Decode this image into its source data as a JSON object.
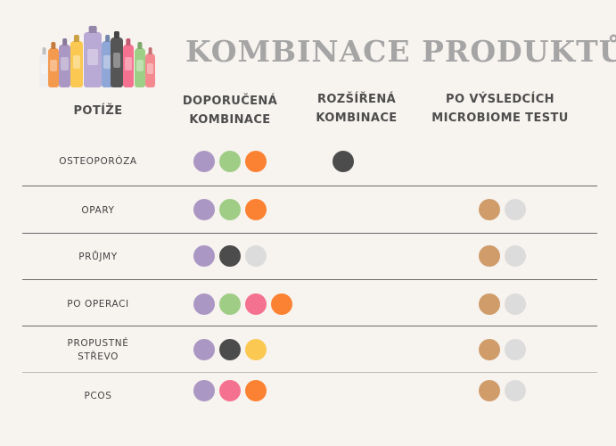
{
  "title": "KOMBINACE PRODUKTŮ",
  "headers": {
    "potize": "POTÍŽE",
    "recommended_1": "DOPORUČENÁ",
    "recommended_2": "KOMBINACE",
    "extended_1": "ROZŠÍŘENÁ",
    "extended_2": "KOMBINACE",
    "microbiome_1": "PO VÝSLEDCÍCH",
    "microbiome_2": "MICROBIOME TESTU"
  },
  "colors": {
    "purple": "#ab97c3",
    "green": "#a0cd86",
    "orange": "#fb8232",
    "black": "#4c4c4c",
    "lightgray": "#dcdcdc",
    "pink": "#f4728f",
    "yellow": "#fbc952",
    "tan": "#cf9c6a"
  },
  "bottles": [
    {
      "color": "#efefef"
    },
    {
      "color": "#f49a4f"
    },
    {
      "color": "#ab97c3"
    },
    {
      "color": "#fbc952"
    },
    {
      "color": "#b9a9d5"
    },
    {
      "color": "#8fa7d6"
    },
    {
      "color": "#555555"
    },
    {
      "color": "#f4728f"
    },
    {
      "color": "#9dcf86"
    },
    {
      "color": "#f48a8f"
    }
  ],
  "rows": [
    {
      "label": "OSTEOPORÓZA",
      "recommended": [
        "purple",
        "green",
        "orange"
      ],
      "extended": [
        "black"
      ],
      "microbiome": []
    },
    {
      "label": "OPARY",
      "recommended": [
        "purple",
        "green",
        "orange"
      ],
      "extended": [],
      "microbiome": [
        "tan",
        "lightgray"
      ]
    },
    {
      "label": "PRŮJMY",
      "recommended": [
        "purple",
        "black",
        "lightgray"
      ],
      "extended": [],
      "microbiome": [
        "tan",
        "lightgray"
      ]
    },
    {
      "label": "PO OPERACI",
      "recommended": [
        "purple",
        "green",
        "pink",
        "orange"
      ],
      "extended": [],
      "microbiome": [
        "tan",
        "lightgray"
      ]
    },
    {
      "label_1": "PROPUSTNÉ",
      "label_2": "STŘEVO",
      "recommended": [
        "purple",
        "black",
        "yellow"
      ],
      "extended": [],
      "microbiome": [
        "tan",
        "lightgray"
      ]
    },
    {
      "label": "PCOS",
      "recommended": [
        "purple",
        "pink",
        "orange"
      ],
      "extended": [],
      "microbiome": [
        "tan",
        "lightgray"
      ]
    }
  ]
}
